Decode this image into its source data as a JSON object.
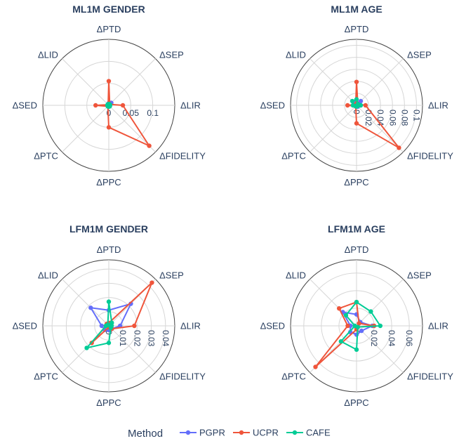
{
  "chart_data": [
    {
      "type": "radar",
      "title": "ML1M GENDER",
      "axes": [
        "ΔPTD",
        "ΔSEP",
        "ΔLIR",
        "ΔFIDELITY",
        "ΔPPC",
        "ΔPTC",
        "ΔSED",
        "ΔLID"
      ],
      "radial_range": [
        0,
        0.15
      ],
      "radial_ticks": [
        0,
        0.05,
        0.1
      ],
      "radial_tick_labels": [
        "0",
        "0.05",
        "0.1"
      ],
      "series": [
        {
          "name": "PGPR",
          "values": [
            0.005,
            0.008,
            0.003,
            0.003,
            0.003,
            0.003,
            0.003,
            0.003
          ]
        },
        {
          "name": "UCPR",
          "values": [
            0.055,
            0.003,
            0.032,
            0.13,
            0.05,
            0.003,
            0.03,
            0.002
          ]
        },
        {
          "name": "CAFE",
          "values": [
            0.003,
            0.003,
            0.003,
            0.003,
            0.003,
            0.003,
            0.003,
            0.003
          ]
        }
      ]
    },
    {
      "type": "radar",
      "title": "ML1M AGE",
      "axes": [
        "ΔPTD",
        "ΔSEP",
        "ΔLIR",
        "ΔFIDELITY",
        "ΔPPC",
        "ΔPTC",
        "ΔSED",
        "ΔLID"
      ],
      "radial_range": [
        0,
        0.11
      ],
      "radial_ticks": [
        0,
        0.02,
        0.04,
        0.06,
        0.08,
        0.1
      ],
      "radial_tick_labels": [
        "0",
        "0.02",
        "0.04",
        "0.06",
        "0.08",
        "0.1"
      ],
      "series": [
        {
          "name": "PGPR",
          "values": [
            0.004,
            0.01,
            0.007,
            0.003,
            0.002,
            0.002,
            0.002,
            0.006
          ]
        },
        {
          "name": "UCPR",
          "values": [
            0.039,
            0.003,
            0.015,
            0.1,
            0.03,
            0.002,
            0.015,
            0.002
          ]
        },
        {
          "name": "CAFE",
          "values": [
            0.01,
            0.003,
            0.007,
            0.002,
            0.002,
            0.002,
            0.006,
            0.01
          ]
        }
      ]
    },
    {
      "type": "radar",
      "title": "LFM1M GENDER",
      "axes": [
        "ΔPTD",
        "ΔSEP",
        "ΔLIR",
        "ΔFIDELITY",
        "ΔPPC",
        "ΔPTC",
        "ΔSED",
        "ΔLID"
      ],
      "radial_range": [
        0,
        0.0465
      ],
      "radial_ticks": [
        0,
        0.01,
        0.02,
        0.03,
        0.04
      ],
      "radial_tick_labels": [
        "0",
        "0.01",
        "0.02",
        "0.03",
        "0.04"
      ],
      "series": [
        {
          "name": "PGPR",
          "values": [
            0.011,
            0.022,
            0.008,
            0.003,
            0.003,
            0.004,
            0.005,
            0.018
          ]
        },
        {
          "name": "UCPR",
          "values": [
            0.002,
            0.043,
            0.018,
            0.003,
            0.001,
            0.017,
            0.002,
            0.002
          ]
        },
        {
          "name": "CAFE",
          "values": [
            0.017,
            0.003,
            0.002,
            0.002,
            0.012,
            0.022,
            0.002,
            0.001
          ]
        }
      ]
    },
    {
      "type": "radar",
      "title": "LFM1M AGE",
      "axes": [
        "ΔPTD",
        "ΔSEP",
        "ΔLIR",
        "ΔFIDELITY",
        "ΔPPC",
        "ΔPTC",
        "ΔSED",
        "ΔLID"
      ],
      "radial_range": [
        0,
        0.075
      ],
      "radial_ticks": [
        0,
        0.02,
        0.04,
        0.06
      ],
      "radial_tick_labels": [
        "0",
        "0.02",
        "0.04",
        "0.06"
      ],
      "series": [
        {
          "name": "PGPR",
          "values": [
            0.013,
            0.006,
            0.018,
            0.008,
            0.01,
            0.01,
            0.007,
            0.022
          ]
        },
        {
          "name": "UCPR",
          "values": [
            0.027,
            0.004,
            0.02,
            0.002,
            0.004,
            0.066,
            0.01,
            0.028
          ]
        },
        {
          "name": "CAFE",
          "values": [
            0.027,
            0.023,
            0.027,
            0.002,
            0.027,
            0.025,
            0.002,
            0.017
          ]
        }
      ]
    }
  ],
  "legend": {
    "title": "Method",
    "items": [
      {
        "name": "PGPR",
        "color": "#636efa"
      },
      {
        "name": "UCPR",
        "color": "#ef553b"
      },
      {
        "name": "CAFE",
        "color": "#00cc96"
      }
    ]
  },
  "colors": {
    "grid": "#d6d6d6",
    "outer_ring": "#444444",
    "text": "#2a3f5f"
  }
}
